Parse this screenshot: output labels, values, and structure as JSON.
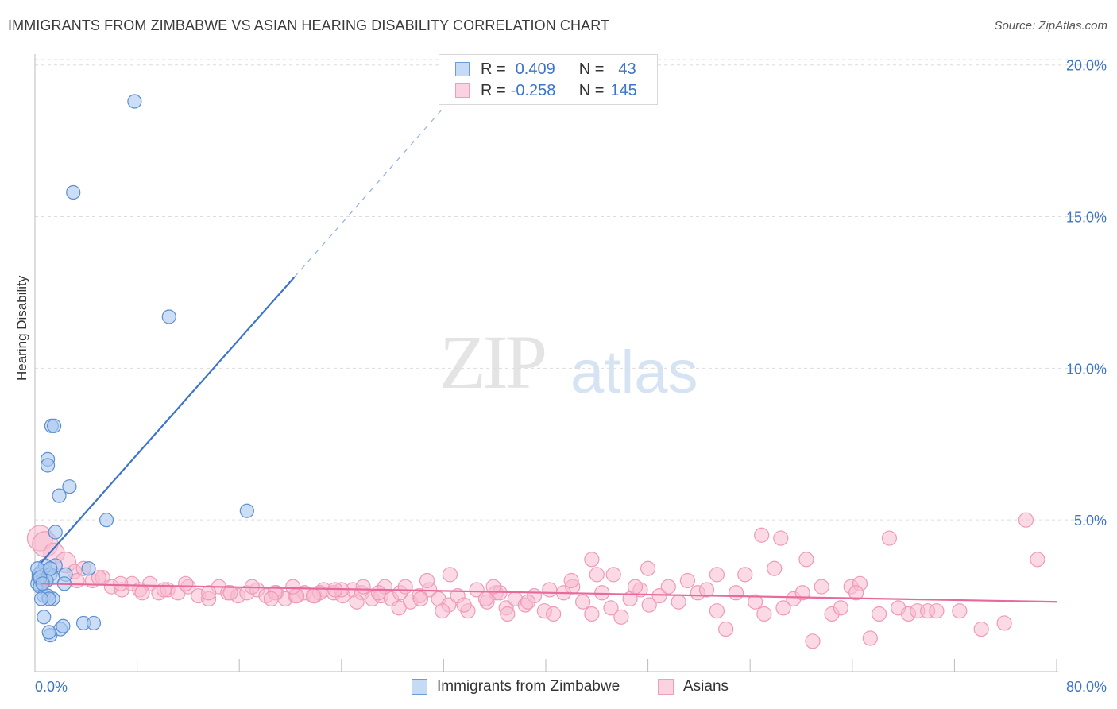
{
  "header": {
    "title": "IMMIGRANTS FROM ZIMBABWE VS ASIAN HEARING DISABILITY CORRELATION CHART",
    "source": "Source: ZipAtlas.com"
  },
  "watermark": {
    "zip": "ZIP",
    "atlas": "atlas"
  },
  "legend_top": {
    "rows": [
      {
        "r_label": "R =",
        "r_value": "0.409",
        "n_label": "N =",
        "n_value": "43"
      },
      {
        "r_label": "R =",
        "r_value": "-0.258",
        "n_label": "N =",
        "n_value": "145"
      }
    ]
  },
  "legend_bottom": {
    "items": [
      {
        "label": "Immigrants from Zimbabwe"
      },
      {
        "label": "Asians"
      }
    ]
  },
  "colors": {
    "blue": "#3b74c9",
    "blue_fill": "#a9c8ef",
    "pink": "#e8699a",
    "pink_fill": "#f7bcd0",
    "grid": "#dddddd"
  },
  "chart_data": {
    "type": "scatter",
    "ylabel": "Hearing Disability",
    "xlim": [
      0,
      80
    ],
    "ylim": [
      0,
      20.5
    ],
    "x_tick_labels": [
      "0.0%",
      "80.0%"
    ],
    "y_ticks": [
      5,
      10,
      15,
      20
    ],
    "y_tick_labels": [
      "5.0%",
      "10.0%",
      "15.0%",
      "20.0%"
    ],
    "grid": true,
    "legend_placement": "top-center and bottom",
    "series": [
      {
        "name": "Immigrants from Zimbabwe",
        "color": "#3b74c9",
        "points": [
          [
            7.8,
            18.8
          ],
          [
            3.0,
            15.8
          ],
          [
            10.5,
            11.7
          ],
          [
            1.3,
            8.1
          ],
          [
            1.5,
            8.1
          ],
          [
            1.0,
            7.0
          ],
          [
            1.0,
            6.8
          ],
          [
            2.7,
            6.1
          ],
          [
            1.9,
            5.8
          ],
          [
            16.6,
            5.3
          ],
          [
            5.6,
            5.0
          ],
          [
            1.6,
            4.6
          ],
          [
            1.6,
            3.5
          ],
          [
            4.2,
            3.4
          ],
          [
            0.5,
            3.3
          ],
          [
            0.9,
            3.3
          ],
          [
            0.8,
            3.5
          ],
          [
            1.2,
            3.2
          ],
          [
            0.3,
            3.1
          ],
          [
            0.6,
            3.0
          ],
          [
            0.2,
            2.9
          ],
          [
            1.4,
            3.1
          ],
          [
            2.4,
            3.2
          ],
          [
            0.4,
            2.8
          ],
          [
            2.3,
            2.9
          ],
          [
            0.7,
            2.5
          ],
          [
            1.0,
            2.5
          ],
          [
            1.4,
            2.4
          ],
          [
            1.1,
            2.4
          ],
          [
            0.3,
            3.2
          ],
          [
            0.9,
            3.0
          ],
          [
            0.7,
            1.8
          ],
          [
            3.8,
            1.6
          ],
          [
            4.6,
            1.6
          ],
          [
            2.0,
            1.4
          ],
          [
            2.2,
            1.5
          ],
          [
            1.2,
            1.2
          ],
          [
            1.1,
            1.3
          ],
          [
            0.5,
            2.4
          ],
          [
            0.2,
            3.4
          ],
          [
            0.4,
            3.1
          ],
          [
            1.2,
            3.4
          ],
          [
            0.6,
            2.9
          ]
        ],
        "trend": {
          "x0": 0.5,
          "y0": 3.6,
          "x1": 20.3,
          "y1": 13.0,
          "dash_to_x": 31.8,
          "dash_to_y": 18.5
        }
      },
      {
        "name": "Asians",
        "color": "#e8699a",
        "points": [
          [
            0.4,
            4.4
          ],
          [
            0.8,
            4.2
          ],
          [
            1.5,
            3.9
          ],
          [
            2.4,
            3.6
          ],
          [
            3.1,
            3.3
          ],
          [
            3.8,
            3.4
          ],
          [
            4.5,
            3.0
          ],
          [
            5.3,
            3.1
          ],
          [
            6.0,
            2.8
          ],
          [
            6.8,
            2.7
          ],
          [
            7.6,
            2.9
          ],
          [
            8.2,
            2.7
          ],
          [
            9.0,
            2.9
          ],
          [
            9.7,
            2.6
          ],
          [
            10.4,
            2.7
          ],
          [
            11.2,
            2.6
          ],
          [
            12.0,
            2.8
          ],
          [
            12.8,
            2.5
          ],
          [
            13.6,
            2.4
          ],
          [
            14.4,
            2.8
          ],
          [
            15.1,
            2.6
          ],
          [
            15.9,
            2.5
          ],
          [
            16.6,
            2.6
          ],
          [
            17.4,
            2.7
          ],
          [
            18.1,
            2.5
          ],
          [
            18.9,
            2.6
          ],
          [
            19.6,
            2.4
          ],
          [
            20.4,
            2.5
          ],
          [
            21.1,
            2.6
          ],
          [
            21.9,
            2.5
          ],
          [
            22.6,
            2.7
          ],
          [
            23.4,
            2.6
          ],
          [
            24.1,
            2.5
          ],
          [
            24.9,
            2.7
          ],
          [
            25.6,
            2.6
          ],
          [
            26.4,
            2.4
          ],
          [
            27.1,
            2.5
          ],
          [
            27.9,
            2.4
          ],
          [
            28.6,
            2.6
          ],
          [
            29.4,
            2.3
          ],
          [
            30.1,
            2.5
          ],
          [
            30.9,
            2.7
          ],
          [
            31.6,
            2.4
          ],
          [
            32.4,
            2.2
          ],
          [
            33.1,
            2.5
          ],
          [
            33.9,
            2.0
          ],
          [
            34.6,
            2.7
          ],
          [
            35.4,
            2.3
          ],
          [
            36.1,
            2.6
          ],
          [
            36.9,
            2.1
          ],
          [
            37.6,
            2.4
          ],
          [
            38.4,
            2.2
          ],
          [
            39.1,
            2.5
          ],
          [
            39.9,
            2.0
          ],
          [
            40.6,
            1.9
          ],
          [
            41.4,
            2.6
          ],
          [
            42.1,
            2.8
          ],
          [
            42.9,
            2.3
          ],
          [
            43.6,
            1.9
          ],
          [
            44.4,
            2.6
          ],
          [
            45.1,
            2.1
          ],
          [
            45.9,
            1.8
          ],
          [
            46.6,
            2.4
          ],
          [
            47.4,
            2.7
          ],
          [
            48.1,
            2.2
          ],
          [
            48.9,
            2.5
          ],
          [
            49.6,
            2.8
          ],
          [
            50.4,
            2.3
          ],
          [
            51.1,
            3.0
          ],
          [
            51.9,
            2.6
          ],
          [
            52.6,
            2.7
          ],
          [
            53.4,
            2.0
          ],
          [
            54.1,
            1.4
          ],
          [
            54.9,
            2.6
          ],
          [
            55.6,
            3.2
          ],
          [
            56.4,
            2.3
          ],
          [
            57.1,
            1.9
          ],
          [
            57.9,
            3.4
          ],
          [
            58.6,
            2.1
          ],
          [
            59.4,
            2.4
          ],
          [
            60.1,
            2.6
          ],
          [
            60.9,
            1.0
          ],
          [
            61.6,
            2.8
          ],
          [
            62.4,
            1.9
          ],
          [
            63.1,
            2.1
          ],
          [
            63.9,
            2.8
          ],
          [
            64.6,
            2.9
          ],
          [
            65.4,
            1.1
          ],
          [
            66.1,
            1.9
          ],
          [
            66.9,
            4.4
          ],
          [
            67.6,
            2.1
          ],
          [
            68.4,
            1.9
          ],
          [
            69.1,
            2.0
          ],
          [
            69.9,
            2.0
          ],
          [
            70.6,
            2.0
          ],
          [
            72.4,
            2.0
          ],
          [
            74.1,
            1.4
          ],
          [
            75.9,
            1.6
          ],
          [
            77.6,
            5.0
          ],
          [
            78.5,
            3.7
          ],
          [
            56.9,
            4.5
          ],
          [
            58.4,
            4.4
          ],
          [
            53.4,
            3.2
          ],
          [
            48.0,
            3.4
          ],
          [
            44.0,
            3.2
          ],
          [
            36.4,
            2.6
          ],
          [
            35.9,
            2.8
          ],
          [
            32.5,
            3.2
          ],
          [
            30.7,
            3.0
          ],
          [
            29.0,
            2.8
          ],
          [
            27.4,
            2.8
          ],
          [
            25.7,
            2.8
          ],
          [
            24.0,
            2.7
          ],
          [
            22.3,
            2.6
          ],
          [
            20.5,
            2.5
          ],
          [
            18.8,
            2.6
          ],
          [
            17.0,
            2.8
          ],
          [
            15.3,
            2.6
          ],
          [
            13.6,
            2.6
          ],
          [
            11.8,
            2.9
          ],
          [
            10.1,
            2.7
          ],
          [
            8.4,
            2.6
          ],
          [
            6.7,
            2.9
          ],
          [
            5.0,
            3.1
          ],
          [
            3.3,
            3.0
          ],
          [
            47.0,
            2.8
          ],
          [
            45.3,
            3.2
          ],
          [
            43.6,
            3.7
          ],
          [
            42.0,
            3.0
          ],
          [
            40.3,
            2.7
          ],
          [
            38.6,
            2.3
          ],
          [
            37.0,
            1.9
          ],
          [
            35.3,
            2.4
          ],
          [
            33.6,
            2.2
          ],
          [
            31.9,
            2.0
          ],
          [
            30.2,
            2.4
          ],
          [
            28.5,
            2.1
          ],
          [
            26.9,
            2.6
          ],
          [
            25.2,
            2.3
          ],
          [
            23.5,
            2.7
          ],
          [
            21.8,
            2.5
          ],
          [
            20.2,
            2.8
          ],
          [
            18.5,
            2.4
          ],
          [
            60.4,
            3.7
          ],
          [
            64.3,
            2.6
          ]
        ],
        "trend": {
          "x0": 0.5,
          "y0": 2.9,
          "x1": 80,
          "y1": 2.3
        }
      }
    ]
  }
}
